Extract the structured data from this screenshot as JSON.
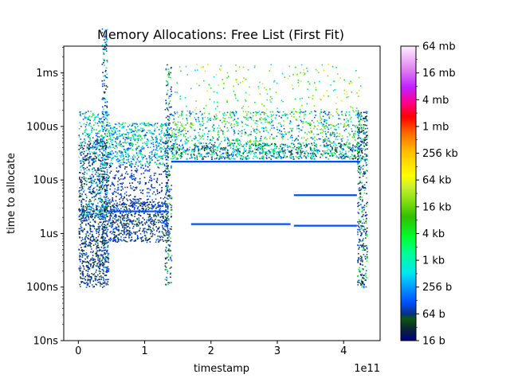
{
  "chart_data": {
    "type": "scatter",
    "title": "Memory Allocations: Free List (First Fit)",
    "xlabel": "timestamp",
    "ylabel": "time to allocate",
    "x_offset_label": "1e11",
    "x_scale_factor": 100000000000,
    "xlim": [
      -22000000000.0,
      455000000000.0
    ],
    "ylim_log10_seconds": [
      -8,
      -2.5
    ],
    "y_scale": "log",
    "grid": false,
    "x_ticks": [
      {
        "value": 0,
        "label": "0"
      },
      {
        "value": 100000000000.0,
        "label": "1"
      },
      {
        "value": 200000000000.0,
        "label": "2"
      },
      {
        "value": 300000000000.0,
        "label": "3"
      },
      {
        "value": 400000000000.0,
        "label": "4"
      }
    ],
    "y_ticks": [
      {
        "value": 1e-08,
        "label": "10ns"
      },
      {
        "value": 1e-07,
        "label": "100ns"
      },
      {
        "value": 1e-06,
        "label": "1us"
      },
      {
        "value": 1e-05,
        "label": "10us"
      },
      {
        "value": 0.0001,
        "label": "100us"
      },
      {
        "value": 0.001,
        "label": "1ms"
      }
    ],
    "colorbar": {
      "colormap": "gist_ncar",
      "scale": "log2",
      "range_bytes": [
        16,
        67108864
      ],
      "ticks": [
        {
          "value": 16,
          "label": "16 b"
        },
        {
          "value": 64,
          "label": "64 b"
        },
        {
          "value": 256,
          "label": "256 b"
        },
        {
          "value": 1024,
          "label": "1 kb"
        },
        {
          "value": 4096,
          "label": "4 kb"
        },
        {
          "value": 16384,
          "label": "16 kb"
        },
        {
          "value": 65536,
          "label": "64 kb"
        },
        {
          "value": 262144,
          "label": "256 kb"
        },
        {
          "value": 1048576,
          "label": "1 mb"
        },
        {
          "value": 4194304,
          "label": "4 mb"
        },
        {
          "value": 16777216,
          "label": "16 mb"
        },
        {
          "value": 67108864,
          "label": "64 mb"
        }
      ]
    },
    "colors": {
      "tiny": "#0a1e78",
      "small": "#0050ff",
      "dark": "#0c4a1e",
      "cyan": "#00e8e8",
      "green": "#10e840",
      "lime": "#7ee800",
      "yellow": "#e8e800",
      "magenta": "#ff40ff"
    },
    "regions": [
      {
        "name": "phase1-fast",
        "x": [
          0,
          45000000000.0
        ],
        "y": [
          1e-07,
          3e-06
        ],
        "colors": [
          "tiny",
          "dark",
          "small"
        ],
        "density": 0.9
      },
      {
        "name": "phase1-mid",
        "x": [
          0,
          45000000000.0
        ],
        "y": [
          2e-06,
          6e-05
        ],
        "colors": [
          "small",
          "tiny",
          "cyan",
          "dark"
        ],
        "density": 0.9
      },
      {
        "name": "phase1-slow",
        "x": [
          0,
          45000000000.0
        ],
        "y": [
          4e-05,
          0.0002
        ],
        "colors": [
          "small",
          "cyan",
          "green"
        ],
        "density": 0.5
      },
      {
        "name": "spike-40e9",
        "x": [
          35000000000.0,
          43000000000.0
        ],
        "y": [
          2e-07,
          0.007
        ],
        "colors": [
          "tiny",
          "small",
          "dark",
          "cyan"
        ],
        "density": 0.6
      },
      {
        "name": "phase2-low",
        "x": [
          45000000000.0,
          135000000000.0
        ],
        "y": [
          7e-07,
          4e-06
        ],
        "colors": [
          "small",
          "tiny",
          "dark"
        ],
        "density": 0.9
      },
      {
        "name": "phase2-mid",
        "x": [
          45000000000.0,
          135000000000.0
        ],
        "y": [
          3e-06,
          2e-05
        ],
        "colors": [
          "small",
          "tiny"
        ],
        "density": 0.4
      },
      {
        "name": "phase2-high",
        "x": [
          45000000000.0,
          135000000000.0
        ],
        "y": [
          2e-05,
          0.00012
        ],
        "colors": [
          "cyan",
          "green",
          "small"
        ],
        "density": 0.8
      },
      {
        "name": "spike-135e9",
        "x": [
          130000000000.0,
          140000000000.0
        ],
        "y": [
          1e-07,
          0.0015
        ],
        "colors": [
          "tiny",
          "small",
          "dark",
          "green"
        ],
        "density": 0.6
      },
      {
        "name": "phase3-band",
        "x": [
          140000000000.0,
          425000000000.0
        ],
        "y": [
          2.5e-05,
          5e-05
        ],
        "colors": [
          "green",
          "dark",
          "small",
          "cyan"
        ],
        "density": 1.0
      },
      {
        "name": "phase3-upper",
        "x": [
          140000000000.0,
          425000000000.0
        ],
        "y": [
          5e-05,
          0.0002
        ],
        "colors": [
          "green",
          "lime",
          "cyan",
          "small"
        ],
        "density": 0.45
      },
      {
        "name": "phase3-outliers",
        "x": [
          140000000000.0,
          425000000000.0
        ],
        "y": [
          0.0002,
          0.0015
        ],
        "colors": [
          "lime",
          "green",
          "yellow",
          "cyan"
        ],
        "density": 0.08
      },
      {
        "name": "spike-425e9",
        "x": [
          420000000000.0,
          435000000000.0
        ],
        "y": [
          1e-07,
          0.0002
        ],
        "colors": [
          "green",
          "small",
          "dark",
          "tiny"
        ],
        "density": 0.8
      }
    ],
    "lines": [
      {
        "name": "line-22us",
        "x": [
          140000000000.0,
          425000000000.0
        ],
        "y": 2.2e-05,
        "color": "small"
      },
      {
        "name": "line-1.5us",
        "x": [
          170000000000.0,
          320000000000.0
        ],
        "y": 1.5e-06,
        "color": "small"
      },
      {
        "name": "line-1.4us",
        "x": [
          325000000000.0,
          420000000000.0
        ],
        "y": 1.4e-06,
        "color": "small"
      },
      {
        "name": "line-5us",
        "x": [
          325000000000.0,
          420000000000.0
        ],
        "y": 5.2e-06,
        "color": "small"
      },
      {
        "name": "line-3us",
        "x": [
          45000000000.0,
          135000000000.0
        ],
        "y": 2.6e-06,
        "color": "small"
      }
    ]
  }
}
